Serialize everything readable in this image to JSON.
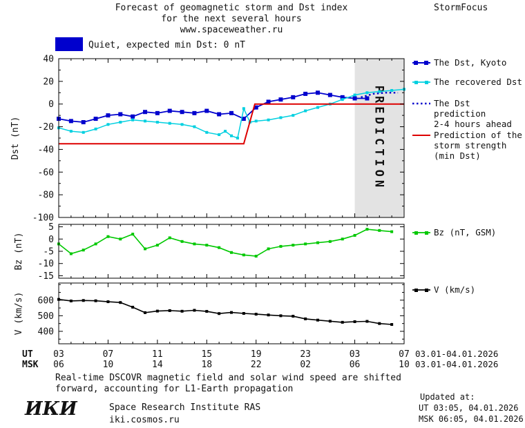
{
  "header": {
    "title_line1": "Forecast of geomagnetic storm and Dst index",
    "title_line2": "for the next several hours",
    "title_line3": "www.spaceweather.ru",
    "brand": "StormFocus"
  },
  "status": {
    "label": "Quiet, expected min Dst: 0 nT"
  },
  "legend": {
    "dst_kyoto": "The Dst, Kyoto",
    "recovered": "The recovered Dst",
    "prediction_line1": "The Dst prediction",
    "prediction_line2": "2-4 hours ahead",
    "storm_line1": "Prediction of the",
    "storm_line2": "storm strength",
    "storm_line3": "(min Dst)",
    "bz": "Bz (nT, GSM)",
    "v": "V (km/s)"
  },
  "axes": {
    "ut_label": "UT",
    "msk_label": "MSK",
    "ut_ticks": [
      "03",
      "07",
      "11",
      "15",
      "19",
      "23",
      "03",
      "07"
    ],
    "msk_ticks": [
      "06",
      "10",
      "14",
      "18",
      "22",
      "02",
      "06",
      "10"
    ],
    "ut_daterange": "03.01-04.01.2026",
    "msk_daterange": "03.01-04.01.2026",
    "prediction_label": "PREDICTION"
  },
  "footer": {
    "note_line1": "Real-time DSCOVR magnetic field and solar wind speed are shifted",
    "note_line2": "forward, accounting for L1-Earth propagation",
    "updated_label": "Updated at:",
    "updated_ut": "UT  03:05, 04.01.2026",
    "updated_msk": "MSK 06:05, 04.01.2026",
    "logo": "ИКИ",
    "institute": "Space Research Institute RAS",
    "site": "iki.cosmos.ru"
  },
  "colors": {
    "dst_kyoto": "#0000cd",
    "recovered": "#00d0e0",
    "prediction": "#0000cd",
    "storm": "#dd0000",
    "bz": "#00c800",
    "v": "#000000",
    "band": "#e3e3e3",
    "band_text": "#b9b9b9",
    "quiet_box": "#0000cd"
  },
  "chart_data": [
    {
      "type": "line",
      "title": "Dst index: observed, recovered and predicted",
      "ylabel": "Dst (nT)",
      "xlim": [
        3,
        31
      ],
      "ylim": [
        -100,
        40
      ],
      "xticks": [
        3,
        7,
        11,
        15,
        19,
        23,
        27,
        31
      ],
      "yticks": [
        40,
        20,
        0,
        -20,
        -40,
        -60,
        -80,
        -100
      ],
      "prediction_band_x": [
        27,
        31
      ],
      "series": [
        {
          "name": "The Dst, Kyoto",
          "color": "#0000cd",
          "marker": "square",
          "marker_size": 6,
          "width": 1.8,
          "x": [
            3,
            4,
            5,
            6,
            7,
            8,
            9,
            10,
            11,
            12,
            13,
            14,
            15,
            16,
            17,
            18,
            19,
            20,
            21,
            22,
            23,
            24,
            25,
            26,
            27,
            28
          ],
          "values": [
            -13,
            -15,
            -16,
            -13,
            -10,
            -9,
            -11,
            -7,
            -8,
            -6,
            -7,
            -8,
            -6,
            -9,
            -8,
            -13,
            -3,
            2,
            4,
            6,
            9,
            10,
            8,
            6,
            5,
            5
          ]
        },
        {
          "name": "The recovered Dst",
          "color": "#00d0e0",
          "marker": "square",
          "marker_size": 4,
          "width": 1.5,
          "x": [
            3,
            4,
            5,
            6,
            7,
            8,
            9,
            10,
            11,
            12,
            13,
            14,
            15,
            16,
            16.5,
            17,
            17.5,
            18,
            18.5,
            19,
            20,
            21,
            22,
            23,
            24,
            25,
            26,
            27,
            28,
            29,
            30,
            31
          ],
          "values": [
            -21,
            -24,
            -25,
            -22,
            -18,
            -16,
            -14,
            -15,
            -16,
            -17,
            -18,
            -20,
            -25,
            -27,
            -24,
            -28,
            -30,
            -4,
            -16,
            -15,
            -14,
            -12,
            -10,
            -6,
            -3,
            0,
            4,
            8,
            10,
            11,
            12,
            13
          ]
        },
        {
          "name": "The Dst prediction 2-4 hours ahead",
          "color": "#0000cd",
          "style": "dotted",
          "width": 2.4,
          "x": [
            27.5,
            28.5,
            29.5,
            30.5
          ],
          "values": [
            6,
            9,
            10,
            10
          ]
        },
        {
          "name": "Prediction of the storm strength (min Dst)",
          "color": "#dd0000",
          "width": 2,
          "x": [
            3,
            18,
            18.9,
            31
          ],
          "values": [
            -35,
            -35,
            0,
            0
          ]
        }
      ]
    },
    {
      "type": "line",
      "title": "Bz component of interplanetary magnetic field",
      "ylabel": "Bz (nT)",
      "xlim": [
        3,
        31
      ],
      "ylim": [
        -16,
        6
      ],
      "xticks": [
        3,
        7,
        11,
        15,
        19,
        23,
        27,
        31
      ],
      "yticks": [
        5,
        0,
        -5,
        -10,
        -15
      ],
      "series": [
        {
          "name": "Bz (nT, GSM)",
          "color": "#00c800",
          "marker": "square",
          "marker_size": 4,
          "width": 1.6,
          "x": [
            3,
            4,
            5,
            6,
            7,
            8,
            9,
            10,
            11,
            12,
            13,
            14,
            15,
            16,
            17,
            18,
            19,
            20,
            21,
            22,
            23,
            24,
            25,
            26,
            27,
            28,
            29,
            30
          ],
          "values": [
            -2,
            -6,
            -4.5,
            -2,
            1,
            0,
            2,
            -4,
            -2.5,
            0.5,
            -1,
            -2,
            -2.5,
            -3.5,
            -5.5,
            -6.5,
            -7,
            -4,
            -3,
            -2.5,
            -2,
            -1.5,
            -1,
            0,
            1.5,
            4,
            3.5,
            3
          ]
        }
      ]
    },
    {
      "type": "line",
      "title": "Solar wind speed",
      "ylabel": "V (km/s)",
      "xlim": [
        3,
        31
      ],
      "ylim": [
        320,
        710
      ],
      "xticks": [
        3,
        7,
        11,
        15,
        19,
        23,
        27,
        31
      ],
      "yticks": [
        600,
        500,
        400
      ],
      "series": [
        {
          "name": "V (km/s)",
          "color": "#000000",
          "marker": "square",
          "marker_size": 4,
          "width": 1.6,
          "x": [
            3,
            4,
            5,
            6,
            7,
            8,
            9,
            10,
            11,
            12,
            13,
            14,
            15,
            16,
            17,
            18,
            19,
            20,
            21,
            22,
            23,
            24,
            25,
            26,
            27,
            28,
            29,
            30
          ],
          "values": [
            605,
            595,
            598,
            596,
            590,
            585,
            555,
            520,
            530,
            533,
            529,
            535,
            528,
            514,
            521,
            515,
            510,
            505,
            500,
            497,
            480,
            472,
            465,
            458,
            462,
            464,
            450,
            444
          ]
        }
      ]
    }
  ]
}
